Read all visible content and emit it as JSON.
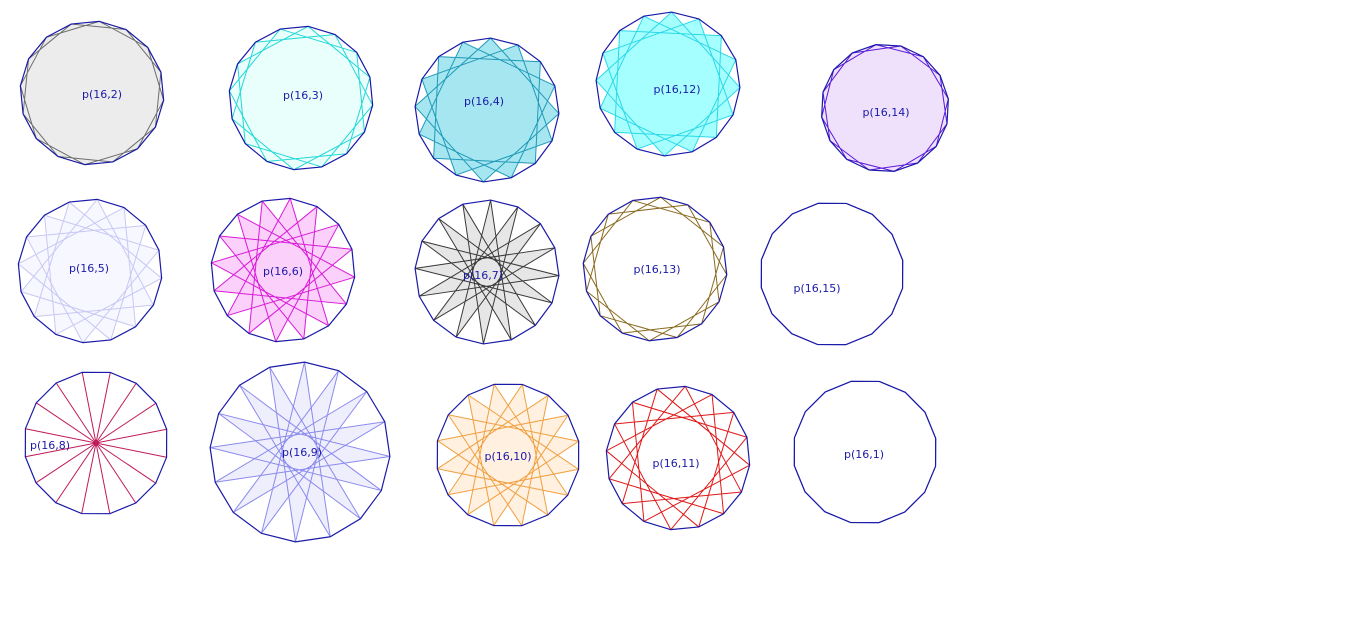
{
  "figures": [
    {
      "label": "p(16,2)",
      "step": 2,
      "stroke": "#6e6e6e",
      "fill": "#ececec"
    },
    {
      "label": "p(16,3)",
      "step": 3,
      "stroke": "#20d8d8",
      "fill": "#e8fffb"
    },
    {
      "label": "p(16,4)",
      "step": 4,
      "stroke": "#1f9ab8",
      "fill": "#a6e6f0"
    },
    {
      "label": "p(16,12)",
      "step": 12,
      "stroke": "#2ad8e8",
      "fill": "#a6ffff"
    },
    {
      "label": "p(16,14)",
      "step": 14,
      "stroke": "#5a1ad8",
      "fill": "#efe1fb"
    },
    {
      "label": "p(16,5)",
      "step": 5,
      "stroke": "#c8c8f4",
      "fill": "#f7f7ff"
    },
    {
      "label": "p(16,6)",
      "step": 6,
      "stroke": "#d81ad8",
      "fill": "#fbd0fb"
    },
    {
      "label": "p(16,7)",
      "step": 7,
      "stroke": "#3a3a3a",
      "fill": "#e6e6e6"
    },
    {
      "label": "p(16,13)",
      "step": 13,
      "stroke": "#8a6a20",
      "fill": "none"
    },
    {
      "label": "p(16,15)",
      "step": 15,
      "stroke": "#1a1aa8",
      "fill": "none"
    },
    {
      "label": "p(16,8)",
      "step": 8,
      "stroke": "#c0185a",
      "fill": "none"
    },
    {
      "label": "p(16,9)",
      "step": 9,
      "stroke": "#8a8aee",
      "fill": "#eeeefc"
    },
    {
      "label": "p(16,10)",
      "step": 10,
      "stroke": "#f0a040",
      "fill": "#fff0e0"
    },
    {
      "label": "p(16,11)",
      "step": 11,
      "stroke": "#e01818",
      "fill": "none"
    },
    {
      "label": "p(16,1)",
      "step": 1,
      "stroke": "#1a1aa8",
      "fill": "none"
    }
  ],
  "outline_color": "#1a1aa8"
}
